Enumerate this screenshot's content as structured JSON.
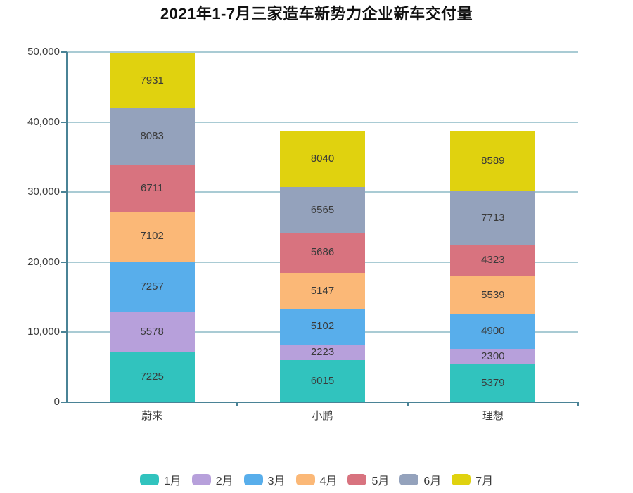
{
  "title": "2021年1-7月三家造车新势力企业新车交付量",
  "colors": {
    "axis": "#4a8396",
    "gridline": "#a9cbd4",
    "tick": "#4a8396",
    "label_text": "#3d3d3d",
    "background": "#ffffff"
  },
  "chart_data": {
    "type": "bar",
    "stacked": true,
    "title": "2021年1-7月三家造车新势力企业新车交付量",
    "categories": [
      "蔚来",
      "小鹏",
      "理想"
    ],
    "series": [
      {
        "name": "1月",
        "color": "#31c3be",
        "values": [
          7225,
          6015,
          5379
        ]
      },
      {
        "name": "2月",
        "color": "#b7a0db",
        "values": [
          5578,
          2223,
          2300
        ]
      },
      {
        "name": "3月",
        "color": "#58aeeb",
        "values": [
          7257,
          5102,
          4900
        ]
      },
      {
        "name": "4月",
        "color": "#fbb877",
        "values": [
          7102,
          5147,
          5539
        ]
      },
      {
        "name": "5月",
        "color": "#d8737f",
        "values": [
          6711,
          5686,
          4323
        ]
      },
      {
        "name": "6月",
        "color": "#94a2bc",
        "values": [
          8083,
          6565,
          7713
        ]
      },
      {
        "name": "7月",
        "color": "#e0d20f",
        "values": [
          7931,
          8040,
          8589
        ]
      }
    ],
    "totals": [
      49887,
      38778,
      38743
    ],
    "ylim": [
      0,
      50000
    ],
    "y_tick_interval": 10000,
    "y_ticks": [
      "0",
      "10,000",
      "20,000",
      "30,000",
      "40,000",
      "50,000"
    ],
    "grid": true,
    "value_labels": "inside",
    "legend_position": "bottom",
    "xlabel": "",
    "ylabel": ""
  }
}
